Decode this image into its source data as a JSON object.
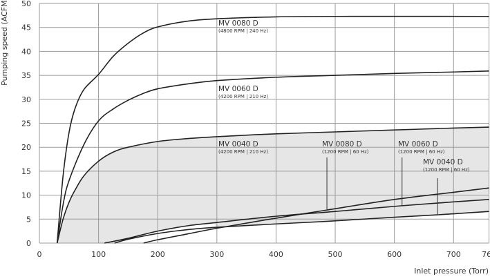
{
  "chart_data": {
    "type": "line",
    "xlabel": "Inlet pressure (Torr)",
    "ylabel": "Pumping speed (ACFM)",
    "xlim": [
      0,
      760
    ],
    "ylim": [
      0,
      50
    ],
    "xticks": [
      0,
      100,
      200,
      300,
      400,
      500,
      600,
      700,
      760
    ],
    "yticks": [
      0,
      5,
      10,
      15,
      20,
      25,
      30,
      35,
      40,
      45,
      50
    ],
    "grid": true,
    "shaded_region_color": "#e6e6e6",
    "line_color": "#222222",
    "series": [
      {
        "name": "MV 0080 D",
        "sub": "(4800 RPM | 240 Hz)",
        "points": [
          [
            30,
            0
          ],
          [
            40,
            14
          ],
          [
            50,
            23
          ],
          [
            60,
            28
          ],
          [
            75,
            32
          ],
          [
            100,
            35.2
          ],
          [
            125,
            39
          ],
          [
            150,
            41.7
          ],
          [
            175,
            43.8
          ],
          [
            200,
            45.1
          ],
          [
            250,
            46.3
          ],
          [
            300,
            46.8
          ],
          [
            400,
            47.2
          ],
          [
            500,
            47.3
          ],
          [
            760,
            47.3
          ]
        ]
      },
      {
        "name": "MV 0060 D",
        "sub": "(4200 RPM | 210 Hz)",
        "points": [
          [
            30,
            0
          ],
          [
            40,
            8
          ],
          [
            50,
            13
          ],
          [
            75,
            20.5
          ],
          [
            100,
            25.5
          ],
          [
            125,
            28
          ],
          [
            150,
            29.8
          ],
          [
            175,
            31.2
          ],
          [
            200,
            32.2
          ],
          [
            250,
            33.2
          ],
          [
            300,
            33.9
          ],
          [
            400,
            34.6
          ],
          [
            500,
            35
          ],
          [
            600,
            35.4
          ],
          [
            700,
            35.7
          ],
          [
            760,
            35.9
          ]
        ]
      },
      {
        "name": "MV 0040 D",
        "sub": "(4200 RPM | 210 Hz)",
        "points": [
          [
            30,
            0
          ],
          [
            40,
            5
          ],
          [
            50,
            8.5
          ],
          [
            60,
            11
          ],
          [
            75,
            14
          ],
          [
            100,
            17.1
          ],
          [
            125,
            19
          ],
          [
            150,
            20
          ],
          [
            200,
            21.2
          ],
          [
            250,
            21.8
          ],
          [
            300,
            22.2
          ],
          [
            400,
            22.8
          ],
          [
            500,
            23.2
          ],
          [
            600,
            23.6
          ],
          [
            700,
            24
          ],
          [
            760,
            24.2
          ]
        ]
      },
      {
        "name": "MV 0080 D",
        "sub": "(1200 RPM | 60 Hz)",
        "points": [
          [
            176,
            0
          ],
          [
            200,
            0.7
          ],
          [
            250,
            1.9
          ],
          [
            300,
            3.1
          ],
          [
            400,
            5.2
          ],
          [
            486,
            6.9
          ],
          [
            600,
            9.1
          ],
          [
            700,
            10.6
          ],
          [
            760,
            11.5
          ]
        ]
      },
      {
        "name": "MV 0060 D",
        "sub": "(1200 RPM | 60 Hz)",
        "points": [
          [
            110,
            0
          ],
          [
            150,
            1
          ],
          [
            200,
            2.5
          ],
          [
            250,
            3.6
          ],
          [
            300,
            4.3
          ],
          [
            400,
            5.6
          ],
          [
            500,
            6.6
          ],
          [
            613,
            7.8
          ],
          [
            700,
            8.6
          ],
          [
            760,
            9.1
          ]
        ]
      },
      {
        "name": "MV 0040 D",
        "sub": "(1200 RPM | 60 Hz)",
        "points": [
          [
            127,
            0
          ],
          [
            150,
            0.8
          ],
          [
            200,
            2
          ],
          [
            250,
            2.8
          ],
          [
            300,
            3.3
          ],
          [
            400,
            4
          ],
          [
            480,
            4.5
          ],
          [
            600,
            5.4
          ],
          [
            673,
            5.9
          ],
          [
            760,
            6.6
          ]
        ]
      }
    ]
  }
}
